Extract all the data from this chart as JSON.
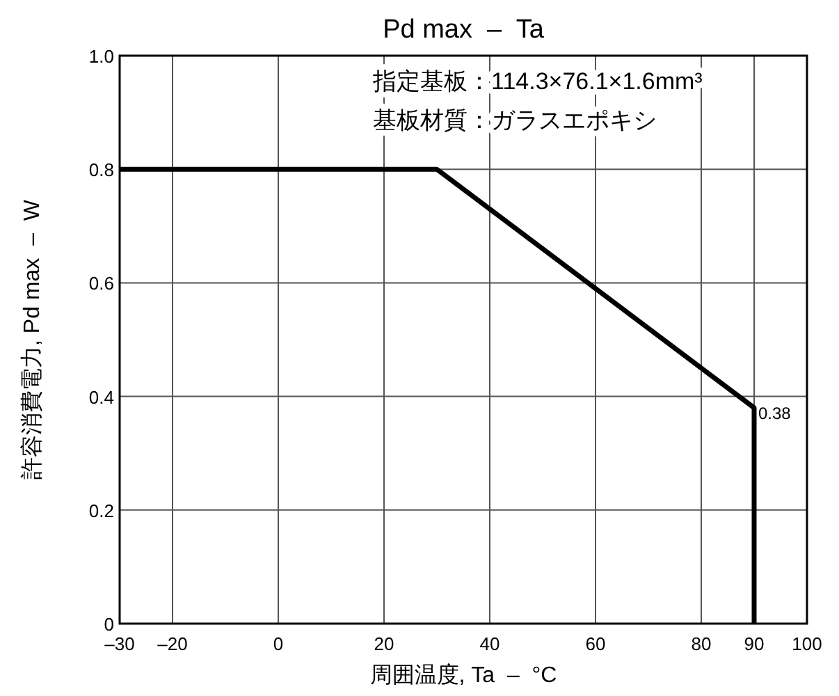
{
  "chart_data": {
    "type": "line",
    "title": "Pd max  –  Ta",
    "xlabel": "周囲温度, Ta  –  °C",
    "ylabel": "許容消費電力, Pd max  –  W",
    "x": [
      -30,
      30,
      90,
      90
    ],
    "series": [
      {
        "color": "#000000",
        "values": [
          0.8,
          0.8,
          0.38,
          0
        ]
      }
    ],
    "annotations": [
      "指定基板：114.3×76.1×1.6mm³",
      "基板材質：ガラスエポキシ",
      {
        "text": "0.38",
        "x": 90,
        "y": 0.38
      }
    ],
    "xlim": [
      -30,
      100
    ],
    "ylim": [
      0,
      1
    ],
    "xticks": [
      {
        "value": -30,
        "label": "–30"
      },
      {
        "value": -20,
        "label": "–20"
      },
      0,
      20,
      40,
      60,
      80,
      90,
      100
    ],
    "yticks": [
      0,
      0.2,
      0.4,
      0.6,
      0.8,
      {
        "value": 1,
        "label": "1.0"
      }
    ],
    "grid": true,
    "line_style": "solid"
  }
}
